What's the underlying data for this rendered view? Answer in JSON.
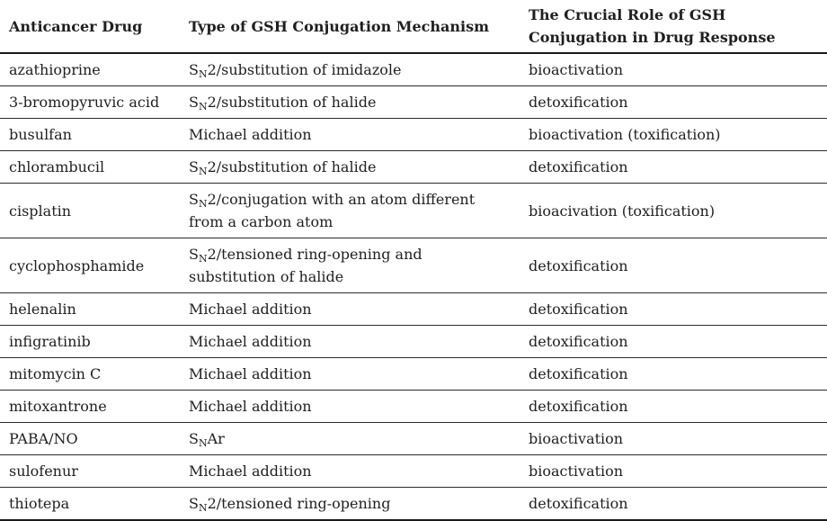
{
  "colors": {
    "text": "#1f1f1f",
    "rule_thin": "#2b2b2b",
    "rule_thick": "#1a1a1a",
    "background": "#ffffff"
  },
  "table": {
    "columns": [
      {
        "label": "Anticancer Drug"
      },
      {
        "label": "Type of GSH Conjugation Mechanism"
      },
      {
        "label": "The Crucial Role of GSH Conjugation in Drug Response"
      }
    ],
    "rows": [
      {
        "drug": "azathioprine",
        "mechanism": [
          {
            "text": "S"
          },
          {
            "text": "N",
            "sub": true
          },
          {
            "text": "2/substitution of imidazole"
          }
        ],
        "role": "bioactivation"
      },
      {
        "drug": "3-bromopyruvic acid",
        "mechanism": [
          {
            "text": "S"
          },
          {
            "text": "N",
            "sub": true
          },
          {
            "text": "2/substitution of halide"
          }
        ],
        "role": "detoxification"
      },
      {
        "drug": "busulfan",
        "mechanism": [
          {
            "text": "Michael addition"
          }
        ],
        "role": "bioactivation (toxification)"
      },
      {
        "drug": "chlorambucil",
        "mechanism": [
          {
            "text": "S"
          },
          {
            "text": "N",
            "sub": true
          },
          {
            "text": "2/substitution of halide"
          }
        ],
        "role": "detoxification"
      },
      {
        "drug": "cisplatin",
        "mechanism": [
          {
            "text": "S"
          },
          {
            "text": "N",
            "sub": true
          },
          {
            "text": "2/conjugation with an atom different from a carbon atom"
          }
        ],
        "role": "bioacivation (toxification)"
      },
      {
        "drug": "cyclophosphamide",
        "mechanism": [
          {
            "text": "S"
          },
          {
            "text": "N",
            "sub": true
          },
          {
            "text": "2/tensioned ring-opening and substitution of halide"
          }
        ],
        "role": "detoxification"
      },
      {
        "drug": "helenalin",
        "mechanism": [
          {
            "text": "Michael addition"
          }
        ],
        "role": "detoxification"
      },
      {
        "drug": "infigratinib",
        "mechanism": [
          {
            "text": "Michael addition"
          }
        ],
        "role": "detoxification"
      },
      {
        "drug": "mitomycin C",
        "mechanism": [
          {
            "text": "Michael addition"
          }
        ],
        "role": "detoxification"
      },
      {
        "drug": "mitoxantrone",
        "mechanism": [
          {
            "text": "Michael addition"
          }
        ],
        "role": "detoxification"
      },
      {
        "drug": "PABA/NO",
        "mechanism": [
          {
            "text": "S"
          },
          {
            "text": "N",
            "sub": true
          },
          {
            "text": "Ar"
          }
        ],
        "role": "bioactivation"
      },
      {
        "drug": "sulofenur",
        "mechanism": [
          {
            "text": "Michael addition"
          }
        ],
        "role": "bioactivation"
      },
      {
        "drug": "thiotepa",
        "mechanism": [
          {
            "text": "S"
          },
          {
            "text": "N",
            "sub": true
          },
          {
            "text": "2/tensioned ring-opening"
          }
        ],
        "role": "detoxification"
      }
    ]
  }
}
